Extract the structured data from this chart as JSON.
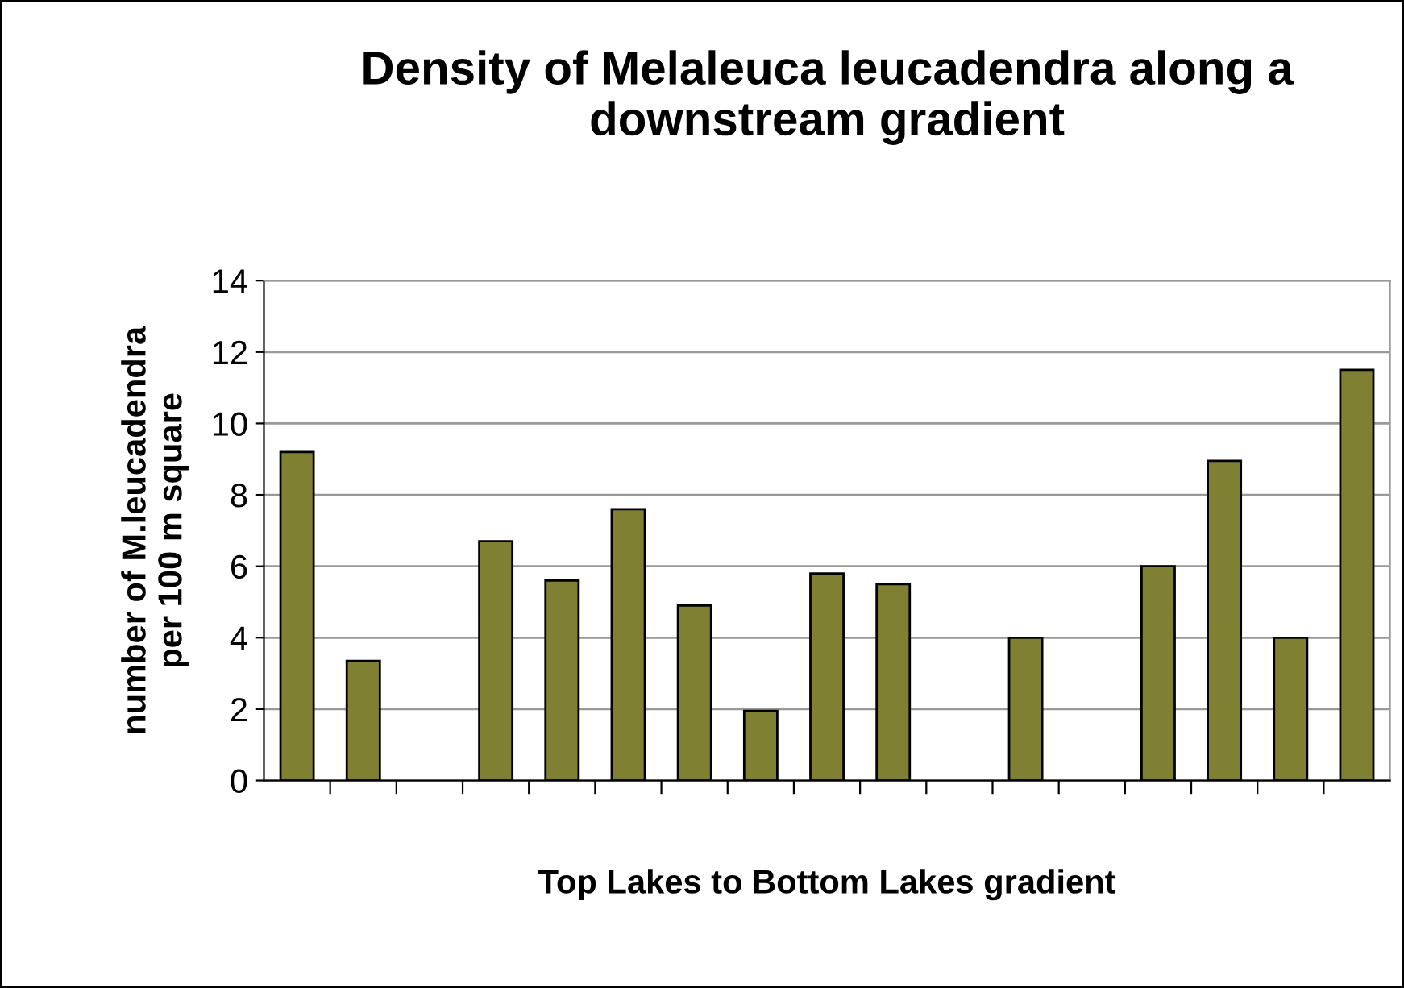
{
  "chart_data": {
    "type": "bar",
    "title": "Density of Melaleuca leucadendra along a\ndownstream gradient",
    "xlabel": "Top Lakes to Bottom Lakes gradient",
    "ylabel": "number of M.leucadendra\nper 100 m square",
    "categories": [
      null,
      null,
      null,
      null,
      null,
      null,
      null,
      null,
      null,
      null,
      null,
      null,
      null,
      null,
      null,
      null,
      null
    ],
    "values": [
      9.2,
      3.35,
      null,
      6.7,
      5.6,
      7.6,
      4.9,
      1.95,
      5.8,
      5.5,
      null,
      4.0,
      null,
      6.0,
      8.95,
      4.0,
      11.5
    ],
    "color": "#808033",
    "ylim": [
      0,
      14
    ],
    "yticks": [
      0,
      2,
      4,
      6,
      8,
      10,
      12,
      14
    ],
    "grid": "y",
    "legend": false
  }
}
